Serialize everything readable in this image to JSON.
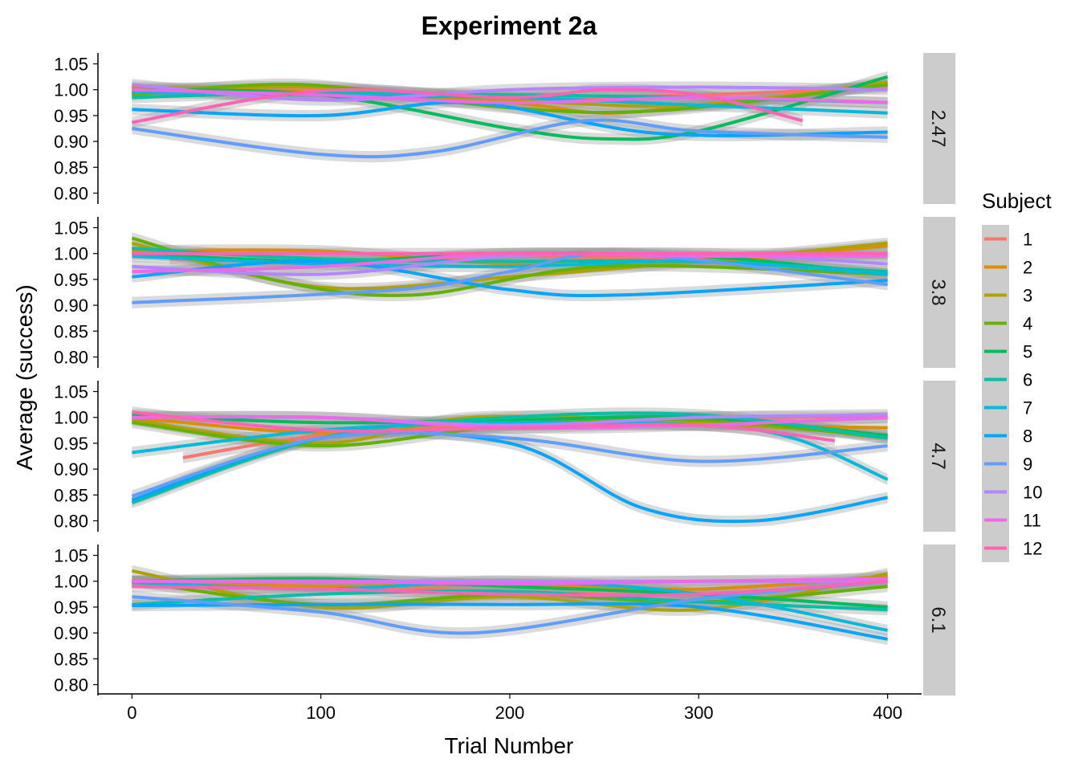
{
  "chart_data": {
    "type": "line",
    "title": "Experiment 2a",
    "xlabel": "Trial Number",
    "ylabel": "Average (success)",
    "xlim": [
      -18,
      418
    ],
    "ylim": [
      0.779,
      1.071
    ],
    "x_ticks": [
      0,
      100,
      200,
      300,
      400
    ],
    "x_tick_labels": [
      "0",
      "100",
      "200",
      "300",
      "400"
    ],
    "y_ticks": [
      0.8,
      0.85,
      0.9,
      0.95,
      1.0,
      1.05
    ],
    "y_tick_labels": [
      "0.80",
      "0.85",
      "0.90",
      "0.95",
      "1.00",
      "1.05"
    ],
    "grid": false,
    "facet_variable": "panel",
    "legend": {
      "title": "Subject",
      "position": "right"
    },
    "subjects": [
      {
        "name": "1",
        "color": "#F8766D"
      },
      {
        "name": "2",
        "color": "#DB8E00"
      },
      {
        "name": "3",
        "color": "#AEA200"
      },
      {
        "name": "4",
        "color": "#64B200"
      },
      {
        "name": "5",
        "color": "#00BD5C"
      },
      {
        "name": "6",
        "color": "#00C1A7"
      },
      {
        "name": "7",
        "color": "#00BADE"
      },
      {
        "name": "8",
        "color": "#00A6FF"
      },
      {
        "name": "9",
        "color": "#619CFF"
      },
      {
        "name": "10",
        "color": "#B385FF"
      },
      {
        "name": "11",
        "color": "#EF67EB"
      },
      {
        "name": "12",
        "color": "#FF63B6"
      }
    ],
    "panels": [
      {
        "label": "2.47",
        "series": [
          {
            "subject": "1",
            "x": [
              0,
              100,
              200,
              300,
              400
            ],
            "y": [
              0.995,
              1.0,
              0.985,
              0.99,
              1.005
            ]
          },
          {
            "subject": "2",
            "x": [
              0,
              100,
              200,
              250,
              300,
              400
            ],
            "y": [
              1.005,
              0.995,
              0.975,
              0.955,
              0.97,
              1.01
            ]
          },
          {
            "subject": "3",
            "x": [
              0,
              100,
              200,
              300,
              400
            ],
            "y": [
              1.0,
              1.005,
              0.98,
              0.97,
              1.015
            ]
          },
          {
            "subject": "4",
            "x": [
              0,
              90,
              200,
              280,
              400
            ],
            "y": [
              0.99,
              1.01,
              0.965,
              0.96,
              1.01
            ]
          },
          {
            "subject": "5",
            "x": [
              0,
              100,
              200,
              250,
              300,
              400
            ],
            "y": [
              1.0,
              0.99,
              0.925,
              0.905,
              0.92,
              1.025
            ]
          },
          {
            "subject": "6",
            "x": [
              0,
              100,
              200,
              300,
              400
            ],
            "y": [
              0.985,
              0.995,
              0.99,
              0.985,
              0.975
            ]
          },
          {
            "subject": "7",
            "x": [
              0,
              100,
              200,
              300,
              400
            ],
            "y": [
              0.995,
              0.99,
              0.985,
              0.97,
              0.955
            ]
          },
          {
            "subject": "8",
            "x": [
              0,
              100,
              180,
              280,
              400
            ],
            "y": [
              0.962,
              0.95,
              0.975,
              0.915,
              0.918
            ]
          },
          {
            "subject": "9",
            "x": [
              0,
              100,
              160,
              240,
              300,
              400
            ],
            "y": [
              0.925,
              0.875,
              0.88,
              0.94,
              0.92,
              0.908
            ]
          },
          {
            "subject": "10",
            "x": [
              0,
              100,
              200,
              300,
              400
            ],
            "y": [
              1.01,
              0.98,
              1.0,
              1.005,
              1.0
            ]
          },
          {
            "subject": "11",
            "x": [
              0,
              100,
              200,
              300,
              400
            ],
            "y": [
              1.0,
              0.99,
              0.975,
              0.985,
              0.975
            ]
          },
          {
            "subject": "12",
            "x": [
              0,
              100,
              200,
              250,
              300,
              355
            ],
            "y": [
              0.937,
              0.998,
              0.985,
              1.0,
              0.99,
              0.94
            ]
          }
        ]
      },
      {
        "label": "3.8",
        "series": [
          {
            "subject": "1",
            "x": [
              20,
              100,
              200,
              300,
              400
            ],
            "y": [
              0.99,
              0.985,
              0.995,
              0.99,
              1.0
            ]
          },
          {
            "subject": "2",
            "x": [
              0,
              100,
              200,
              300,
              400
            ],
            "y": [
              1.005,
              1.005,
              0.98,
              0.985,
              1.015
            ]
          },
          {
            "subject": "3",
            "x": [
              0,
              100,
              200,
              300,
              400
            ],
            "y": [
              1.02,
              0.935,
              0.955,
              0.985,
              1.02
            ]
          },
          {
            "subject": "4",
            "x": [
              0,
              80,
              150,
              250,
              400
            ],
            "y": [
              1.03,
              0.945,
              0.92,
              0.975,
              0.96
            ]
          },
          {
            "subject": "5",
            "x": [
              0,
              100,
              200,
              300,
              400
            ],
            "y": [
              1.0,
              0.985,
              1.0,
              0.995,
              0.96
            ]
          },
          {
            "subject": "6",
            "x": [
              0,
              100,
              200,
              300,
              400
            ],
            "y": [
              1.01,
              0.99,
              0.985,
              0.985,
              0.965
            ]
          },
          {
            "subject": "7",
            "x": [
              0,
              100,
              200,
              300,
              400
            ],
            "y": [
              0.995,
              0.98,
              0.975,
              0.985,
              0.96
            ]
          },
          {
            "subject": "8",
            "x": [
              0,
              100,
              200,
              260,
              400
            ],
            "y": [
              0.955,
              0.985,
              0.93,
              0.92,
              0.948
            ]
          },
          {
            "subject": "9",
            "x": [
              0,
              140,
              200,
              260,
              400
            ],
            "y": [
              0.905,
              0.93,
              0.965,
              1.0,
              0.94
            ]
          },
          {
            "subject": "10",
            "x": [
              0,
              100,
              200,
              300,
              400
            ],
            "y": [
              0.975,
              0.96,
              0.995,
              1.0,
              0.98
            ]
          },
          {
            "subject": "11",
            "x": [
              0,
              100,
              200,
              300,
              400
            ],
            "y": [
              0.965,
              0.975,
              1.0,
              0.995,
              0.995
            ]
          },
          {
            "subject": "12",
            "x": [
              0,
              100,
              200,
              300,
              400
            ],
            "y": [
              1.0,
              1.0,
              1.0,
              1.0,
              1.0
            ]
          }
        ]
      },
      {
        "label": "4.7",
        "series": [
          {
            "subject": "1",
            "x": [
              27,
              100,
              200,
              300,
              400
            ],
            "y": [
              0.922,
              0.965,
              0.99,
              1.0,
              1.0
            ]
          },
          {
            "subject": "2",
            "x": [
              0,
              100,
              200,
              300,
              400
            ],
            "y": [
              1.0,
              0.97,
              0.985,
              0.985,
              0.98
            ]
          },
          {
            "subject": "3",
            "x": [
              0,
              100,
              180,
              300,
              400
            ],
            "y": [
              0.995,
              0.95,
              1.0,
              0.99,
              0.965
            ]
          },
          {
            "subject": "4",
            "x": [
              0,
              100,
              200,
              300,
              400
            ],
            "y": [
              0.99,
              0.945,
              0.985,
              0.995,
              0.96
            ]
          },
          {
            "subject": "5",
            "x": [
              0,
              100,
              200,
              300,
              400
            ],
            "y": [
              1.005,
              0.99,
              0.995,
              1.0,
              0.965
            ]
          },
          {
            "subject": "6",
            "x": [
              0,
              100,
              200,
              300,
              400
            ],
            "y": [
              0.835,
              0.96,
              1.0,
              1.005,
              0.96
            ]
          },
          {
            "subject": "7",
            "x": [
              0,
              100,
              200,
              300,
              350,
              400
            ],
            "y": [
              0.932,
              0.975,
              0.99,
              0.985,
              0.96,
              0.88
            ]
          },
          {
            "subject": "8",
            "x": [
              0,
              100,
              200,
              270,
              330,
              400
            ],
            "y": [
              0.84,
              0.96,
              0.95,
              0.825,
              0.8,
              0.845
            ]
          },
          {
            "subject": "9",
            "x": [
              0,
              100,
              200,
              300,
              400
            ],
            "y": [
              0.848,
              0.96,
              0.96,
              0.915,
              0.945
            ]
          },
          {
            "subject": "10",
            "x": [
              0,
              100,
              200,
              300,
              400
            ],
            "y": [
              1.0,
              1.0,
              0.985,
              1.0,
              1.005
            ]
          },
          {
            "subject": "11",
            "x": [
              0,
              100,
              200,
              300,
              400
            ],
            "y": [
              1.0,
              1.0,
              0.98,
              0.985,
              1.0
            ]
          },
          {
            "subject": "12",
            "x": [
              0,
              100,
              200,
              300,
              372
            ],
            "y": [
              1.01,
              0.975,
              0.98,
              0.985,
              0.955
            ]
          }
        ]
      },
      {
        "label": "6.1",
        "series": [
          {
            "subject": "1",
            "x": [
              0,
              100,
              200,
              300,
              400
            ],
            "y": [
              1.0,
              0.99,
              0.98,
              0.975,
              1.0
            ]
          },
          {
            "subject": "2",
            "x": [
              0,
              100,
              200,
              300,
              400
            ],
            "y": [
              1.0,
              0.99,
              0.995,
              0.985,
              1.01
            ]
          },
          {
            "subject": "3",
            "x": [
              0,
              100,
              200,
              300,
              400
            ],
            "y": [
              1.02,
              0.95,
              0.97,
              0.945,
              1.015
            ]
          },
          {
            "subject": "4",
            "x": [
              0,
              100,
              200,
              300,
              400
            ],
            "y": [
              1.0,
              0.955,
              0.975,
              0.96,
              0.99
            ]
          },
          {
            "subject": "5",
            "x": [
              0,
              100,
              200,
              300,
              400
            ],
            "y": [
              1.0,
              1.005,
              0.99,
              0.975,
              0.95
            ]
          },
          {
            "subject": "6",
            "x": [
              0,
              100,
              200,
              300,
              400
            ],
            "y": [
              0.955,
              0.975,
              0.98,
              0.96,
              0.945
            ]
          },
          {
            "subject": "7",
            "x": [
              0,
              100,
              200,
              300,
              400
            ],
            "y": [
              0.998,
              0.985,
              1.0,
              0.975,
              0.905
            ]
          },
          {
            "subject": "8",
            "x": [
              0,
              100,
              200,
              300,
              400
            ],
            "y": [
              0.953,
              0.955,
              0.955,
              0.95,
              0.888
            ]
          },
          {
            "subject": "9",
            "x": [
              0,
              100,
              180,
              300,
              400
            ],
            "y": [
              0.97,
              0.94,
              0.9,
              0.965,
              1.0
            ]
          },
          {
            "subject": "10",
            "x": [
              0,
              100,
              200,
              300,
              400
            ],
            "y": [
              1.0,
              1.0,
              1.0,
              1.0,
              1.0
            ]
          },
          {
            "subject": "11",
            "x": [
              0,
              100,
              200,
              300,
              400
            ],
            "y": [
              1.0,
              1.0,
              0.995,
              1.0,
              1.005
            ]
          },
          {
            "subject": "12",
            "x": [
              0,
              100,
              200,
              300,
              400
            ],
            "y": [
              0.99,
              0.985,
              0.975,
              0.975,
              1.0
            ]
          }
        ]
      }
    ]
  }
}
